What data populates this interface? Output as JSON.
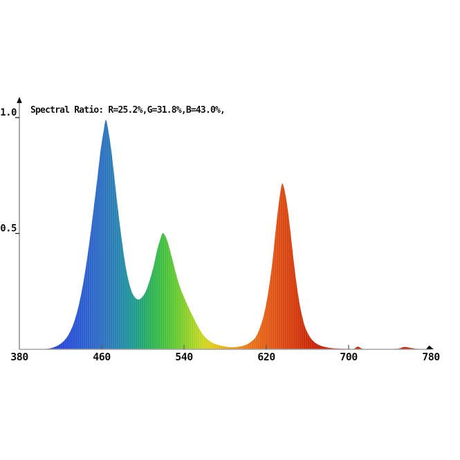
{
  "window": {
    "background": "#ffffff"
  },
  "colors": {
    "x_axis": "#a3a3a3",
    "y_axis": "#6e6e6e",
    "x_tick": "#5f5f5f",
    "y_tick": "#222222",
    "arrow": "#111111",
    "text": "#111111",
    "background": "#ffffff"
  },
  "chart_data": {
    "type": "area",
    "title": "Spectral Ratio:  R=25.2%,G=31.8%,B=43.0%,",
    "spectral_ratio": {
      "R": "25.2%",
      "G": "31.8%",
      "B": "43.0%"
    },
    "xlabel": "",
    "ylabel": "",
    "x_range": [
      380,
      780
    ],
    "y_range": [
      0,
      1.0
    ],
    "grid": false,
    "legend": false,
    "x_ticks": [
      {
        "value": 380,
        "label": "380",
        "mark": false
      },
      {
        "value": 460,
        "label": "460",
        "mark": true
      },
      {
        "value": 540,
        "label": "540",
        "mark": true
      },
      {
        "value": 620,
        "label": "620",
        "mark": true
      },
      {
        "value": 700,
        "label": "700",
        "mark": true
      },
      {
        "value": 780,
        "label": "780",
        "mark": false
      }
    ],
    "y_ticks": [
      {
        "value": 1.0,
        "label": "1.0"
      },
      {
        "value": 0.5,
        "label": "0.5"
      }
    ],
    "peaks": [
      {
        "name": "blue-peak",
        "wavelength_nm": 464,
        "value": 0.99
      },
      {
        "name": "green-peak",
        "wavelength_nm": 519,
        "value": 0.5
      },
      {
        "name": "red-peak",
        "wavelength_nm": 635,
        "value": 0.71
      }
    ],
    "series": [
      {
        "name": "spectral-power-distribution",
        "points": [
          [
            380,
            0
          ],
          [
            396,
            0
          ],
          [
            402,
            0.001
          ],
          [
            408,
            0.003
          ],
          [
            413,
            0.008
          ],
          [
            418,
            0.018
          ],
          [
            423,
            0.035
          ],
          [
            428,
            0.065
          ],
          [
            433,
            0.115
          ],
          [
            438,
            0.195
          ],
          [
            443,
            0.31
          ],
          [
            448,
            0.46
          ],
          [
            452,
            0.6
          ],
          [
            456,
            0.745
          ],
          [
            459,
            0.86
          ],
          [
            462,
            0.945
          ],
          [
            464,
            0.99
          ],
          [
            466,
            0.955
          ],
          [
            469,
            0.87
          ],
          [
            472,
            0.755
          ],
          [
            475,
            0.635
          ],
          [
            479,
            0.49
          ],
          [
            483,
            0.365
          ],
          [
            487,
            0.28
          ],
          [
            491,
            0.232
          ],
          [
            496,
            0.215
          ],
          [
            501,
            0.235
          ],
          [
            505,
            0.275
          ],
          [
            510,
            0.35
          ],
          [
            514,
            0.43
          ],
          [
            517,
            0.475
          ],
          [
            519,
            0.5
          ],
          [
            521,
            0.495
          ],
          [
            524,
            0.465
          ],
          [
            528,
            0.4
          ],
          [
            532,
            0.33
          ],
          [
            536,
            0.27
          ],
          [
            540,
            0.225
          ],
          [
            545,
            0.175
          ],
          [
            550,
            0.13
          ],
          [
            554,
            0.095
          ],
          [
            558,
            0.066
          ],
          [
            562,
            0.046
          ],
          [
            567,
            0.03
          ],
          [
            573,
            0.019
          ],
          [
            580,
            0.012
          ],
          [
            587,
            0.009
          ],
          [
            594,
            0.012
          ],
          [
            600,
            0.019
          ],
          [
            605,
            0.032
          ],
          [
            610,
            0.055
          ],
          [
            614,
            0.095
          ],
          [
            618,
            0.155
          ],
          [
            622,
            0.25
          ],
          [
            626,
            0.38
          ],
          [
            629,
            0.51
          ],
          [
            632,
            0.625
          ],
          [
            635,
            0.71
          ],
          [
            637,
            0.7
          ],
          [
            640,
            0.63
          ],
          [
            643,
            0.525
          ],
          [
            646,
            0.405
          ],
          [
            649,
            0.295
          ],
          [
            652,
            0.205
          ],
          [
            655,
            0.14
          ],
          [
            658,
            0.092
          ],
          [
            662,
            0.056
          ],
          [
            666,
            0.034
          ],
          [
            671,
            0.019
          ],
          [
            677,
            0.01
          ],
          [
            684,
            0.005
          ],
          [
            692,
            0.003
          ],
          [
            700,
            0.002
          ],
          [
            705,
            0.002
          ],
          [
            709,
            0.011
          ],
          [
            713,
            0.003
          ],
          [
            718,
            0.001
          ],
          [
            736,
            0.001
          ],
          [
            748,
            0.003
          ],
          [
            754,
            0.01
          ],
          [
            759,
            0.007
          ],
          [
            765,
            0.003
          ],
          [
            771,
            0.001
          ],
          [
            780,
            0
          ]
        ]
      }
    ],
    "gradient_stops": [
      [
        380,
        "#2433dc"
      ],
      [
        412,
        "#2740dc"
      ],
      [
        428,
        "#2a51d8"
      ],
      [
        442,
        "#2c5ed2"
      ],
      [
        455,
        "#2e6cc9"
      ],
      [
        465,
        "#2e78c0"
      ],
      [
        476,
        "#2a87b3"
      ],
      [
        486,
        "#2295a0"
      ],
      [
        495,
        "#21a286"
      ],
      [
        503,
        "#28ae66"
      ],
      [
        511,
        "#33b852"
      ],
      [
        519,
        "#43c143"
      ],
      [
        528,
        "#5aca38"
      ],
      [
        538,
        "#7ed02e"
      ],
      [
        548,
        "#a4d62a"
      ],
      [
        557,
        "#c8da24"
      ],
      [
        566,
        "#e0d01e"
      ],
      [
        575,
        "#ecbc1a"
      ],
      [
        584,
        "#f0a517"
      ],
      [
        593,
        "#ef9016"
      ],
      [
        602,
        "#ed7b17"
      ],
      [
        612,
        "#ea6a19"
      ],
      [
        624,
        "#e55a18"
      ],
      [
        634,
        "#e04e15"
      ],
      [
        645,
        "#d94110"
      ],
      [
        656,
        "#d1320b"
      ],
      [
        668,
        "#ca2506"
      ],
      [
        682,
        "#c71f03"
      ],
      [
        780,
        "#c61d02"
      ]
    ]
  }
}
